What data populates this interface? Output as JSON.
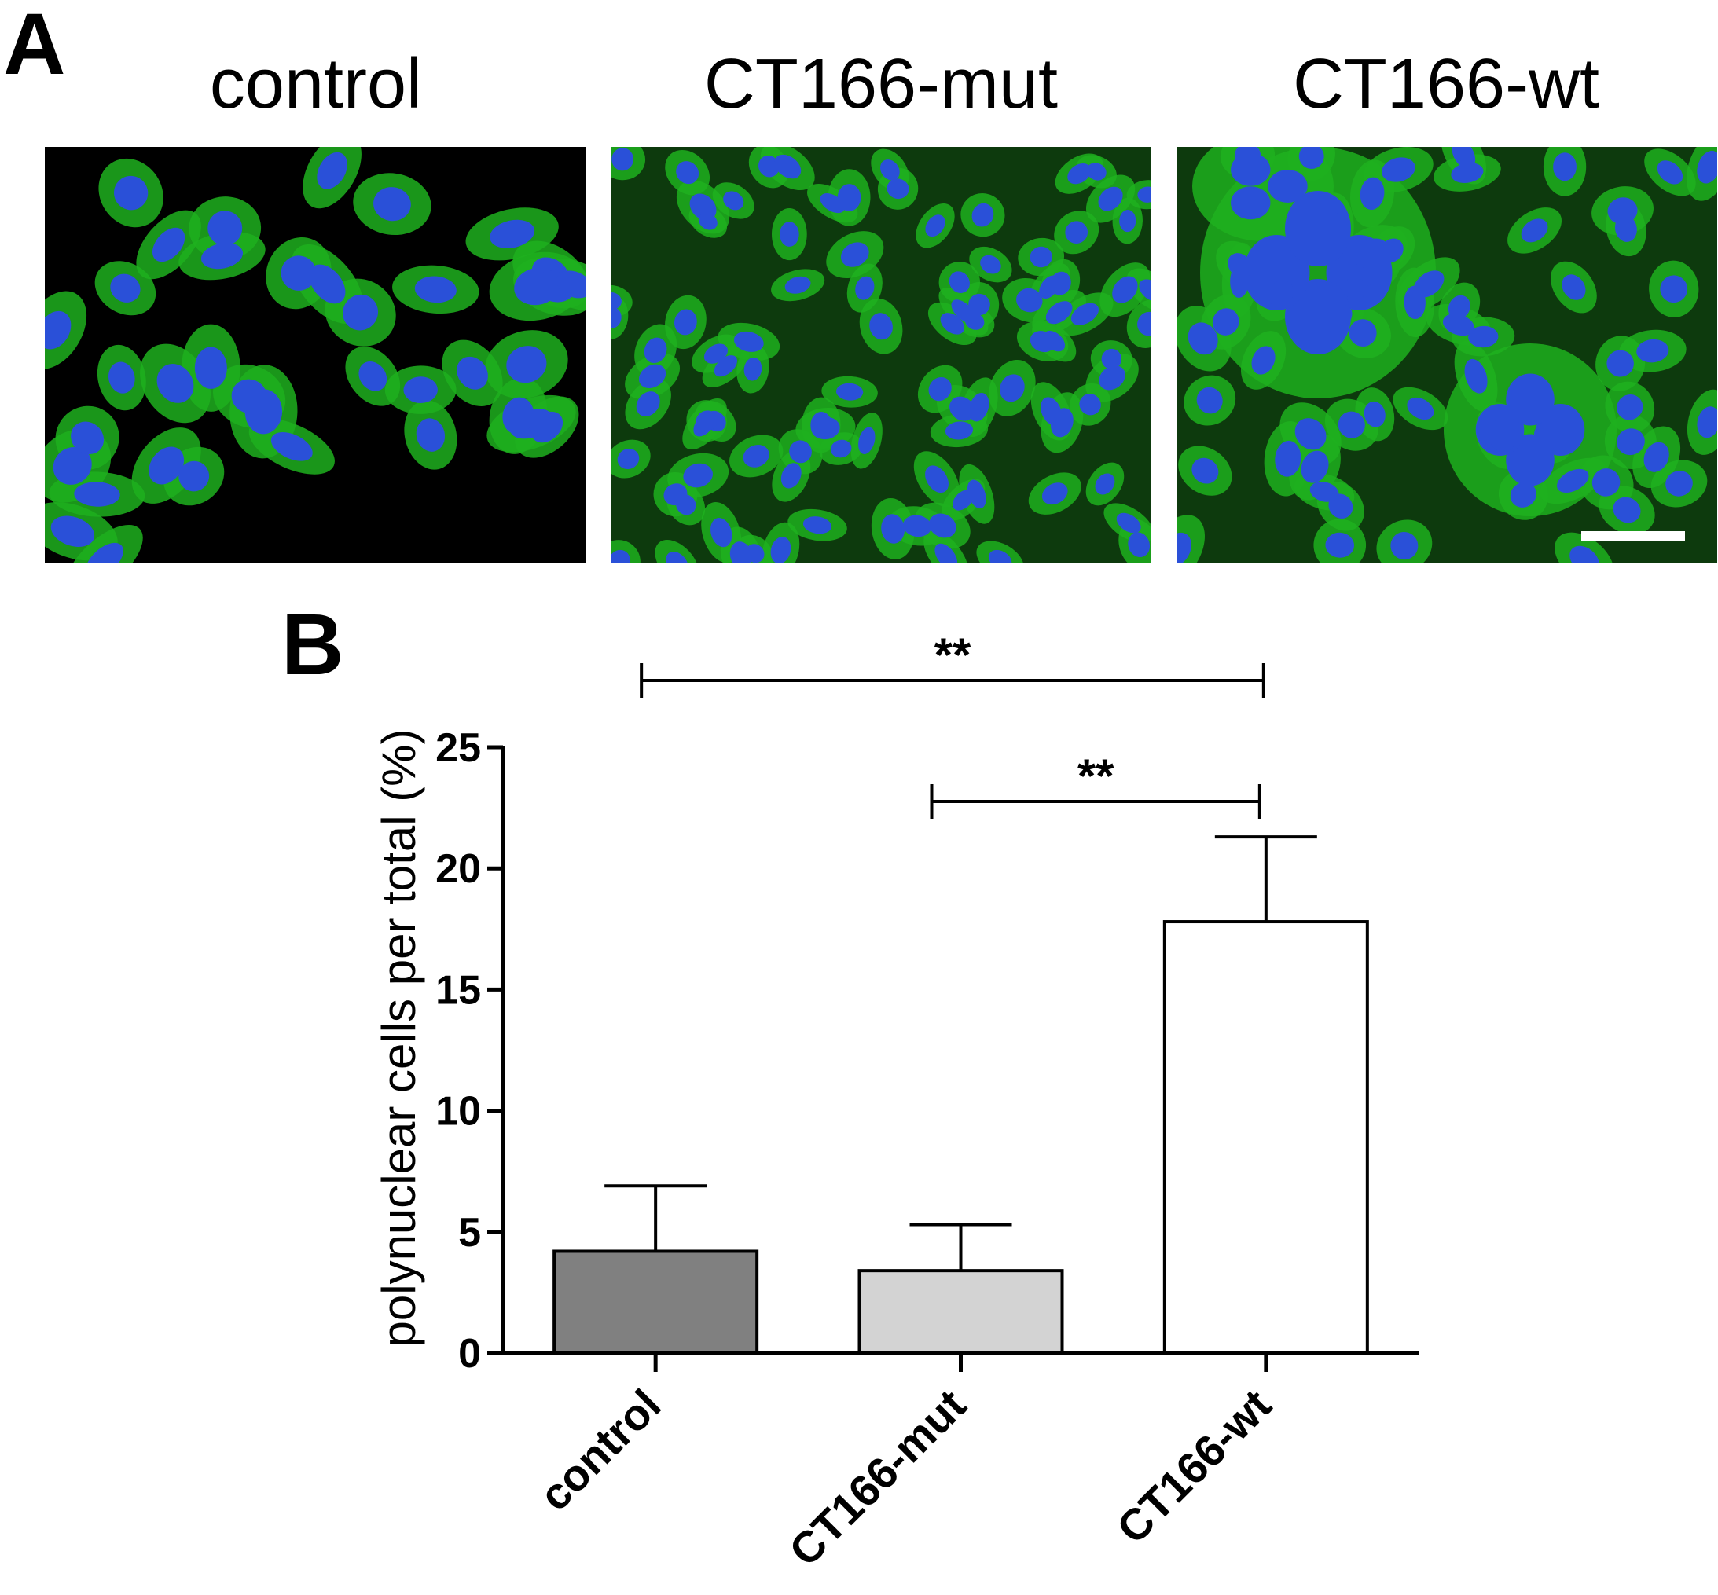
{
  "panel_a": {
    "letter": "A",
    "images": [
      {
        "title": "control",
        "content": "confocal micrograph"
      },
      {
        "title": "CT166-mut",
        "content": "confocal micrograph"
      },
      {
        "title": "CT166-wt",
        "content": "confocal micrograph"
      }
    ],
    "colors": {
      "cytoplasm": "#1fb01f",
      "nucleus": "#2a50d8",
      "background": "#000000",
      "scale_bar": "#ffffff"
    }
  },
  "panel_b": {
    "letter": "B"
  },
  "chart_data": {
    "type": "bar",
    "categories": [
      "control",
      "CT166-mut",
      "CT166-wt"
    ],
    "values": [
      4.2,
      3.4,
      17.8
    ],
    "error_upper": [
      6.9,
      5.3,
      21.3
    ],
    "bar_colors": [
      "#808080",
      "#d3d3d3",
      "#ffffff"
    ],
    "ylabel": "polynuclear cells per total (%)",
    "ylim": [
      0,
      25
    ],
    "yticks": [
      0,
      5,
      10,
      15,
      20,
      25
    ],
    "grid": false,
    "significance": [
      {
        "from": 0,
        "to": 2,
        "label": "**"
      },
      {
        "from": 1,
        "to": 2,
        "label": "**"
      }
    ]
  }
}
